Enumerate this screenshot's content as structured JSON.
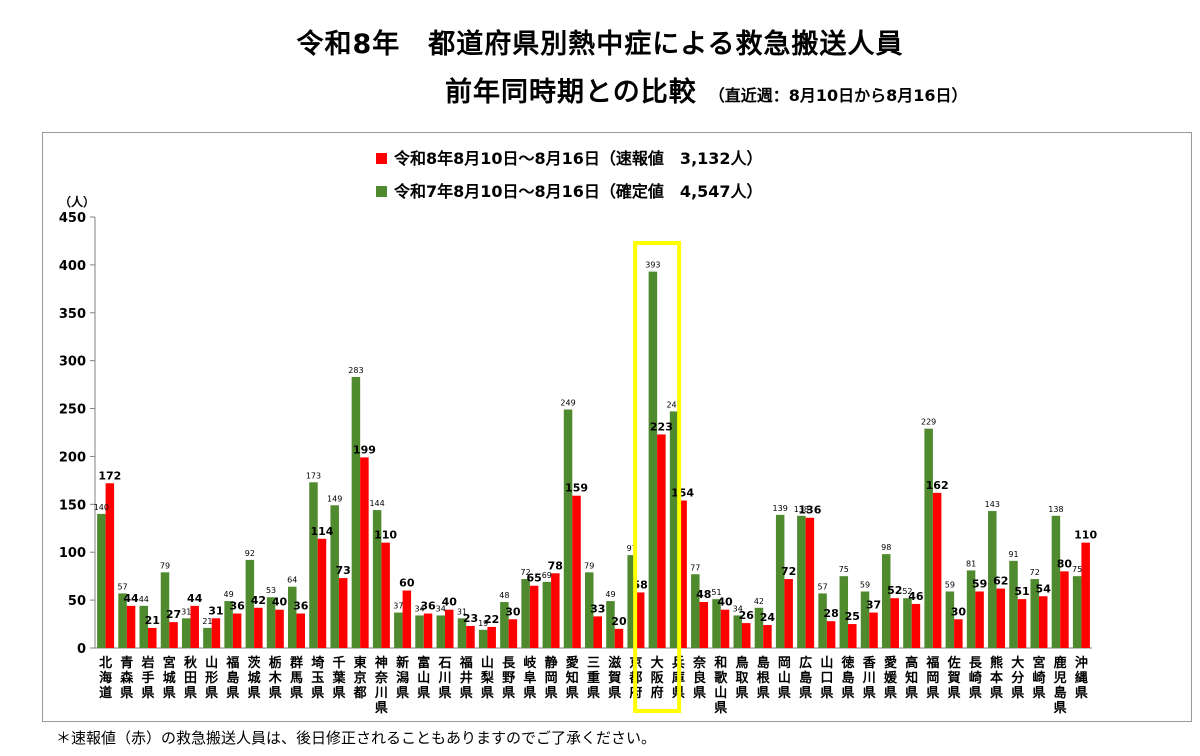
{
  "title": "令和8年　都道府県別熱中症による救急搬送人員",
  "subtitle": "前年同時期との比較",
  "subtitle_note": "（直近週：8月10日から8月16日）",
  "footnote": "＊速報値（赤）の救急搬送人員は、後日修正されることもありますのでご了承ください。",
  "chart_data": {
    "type": "bar",
    "ylabel": "（人）",
    "ylim": [
      0,
      450
    ],
    "yticks": [
      0,
      50,
      100,
      150,
      200,
      250,
      300,
      350,
      400,
      450
    ],
    "legend_position": "top-center",
    "highlight": {
      "category": "大阪府",
      "color": "#ffff00"
    },
    "categories": [
      "北海道",
      "青森県",
      "岩手県",
      "宮城県",
      "秋田県",
      "山形県",
      "福島県",
      "茨城県",
      "栃木県",
      "群馬県",
      "埼玉県",
      "千葉県",
      "東京都",
      "神奈川県",
      "新潟県",
      "富山県",
      "石川県",
      "福井県",
      "山梨県",
      "長野県",
      "岐阜県",
      "静岡県",
      "愛知県",
      "三重県",
      "滋賀県",
      "京都府",
      "大阪府",
      "兵庫県",
      "奈良県",
      "和歌山県",
      "鳥取県",
      "島根県",
      "岡山県",
      "広島県",
      "山口県",
      "徳島県",
      "香川県",
      "愛媛県",
      "高知県",
      "福岡県",
      "佐賀県",
      "長崎県",
      "熊本県",
      "大分県",
      "宮崎県",
      "鹿児島県",
      "沖縄県"
    ],
    "series": [
      {
        "name": "令和7年8月10日～8月16日（確定値　4,547人）",
        "color": "#4f8a2e",
        "values": [
          140,
          57,
          44,
          79,
          31,
          21,
          49,
          92,
          53,
          64,
          173,
          149,
          283,
          144,
          37,
          34,
          34,
          31,
          19,
          48,
          72,
          69,
          249,
          79,
          49,
          97,
          393,
          247,
          77,
          51,
          34,
          42,
          139,
          138,
          57,
          75,
          59,
          98,
          52,
          229,
          59,
          81,
          143,
          91,
          72,
          138,
          75
        ]
      },
      {
        "name": "令和8年8月10日～8月16日（速報値　3,132人）",
        "color": "#ff0000",
        "values": [
          172,
          44,
          21,
          27,
          44,
          31,
          36,
          42,
          40,
          36,
          114,
          73,
          199,
          110,
          60,
          36,
          40,
          23,
          22,
          30,
          65,
          78,
          159,
          33,
          20,
          58,
          223,
          154,
          48,
          40,
          26,
          24,
          72,
          136,
          28,
          25,
          37,
          52,
          46,
          162,
          30,
          59,
          62,
          51,
          54,
          80,
          110
        ]
      }
    ]
  }
}
